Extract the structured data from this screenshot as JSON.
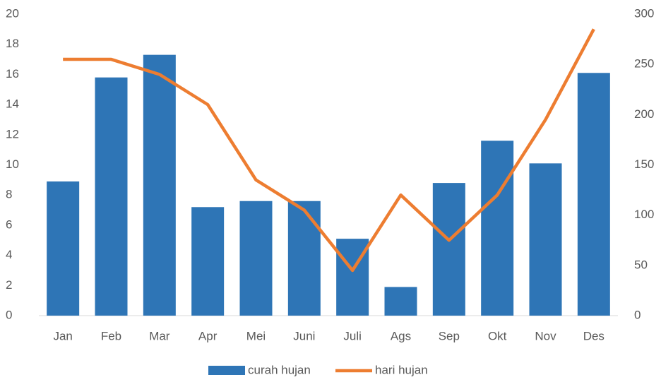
{
  "chart_data": {
    "type": "bar_line",
    "categories": [
      "Jan",
      "Feb",
      "Mar",
      "Apr",
      "Mei",
      "Juni",
      "Juli",
      "Ags",
      "Sep",
      "Okt",
      "Nov",
      "Des"
    ],
    "series": [
      {
        "name": "curah hujan",
        "type": "bar",
        "color": "#2e75b6",
        "values": [
          8.9,
          15.8,
          17.3,
          7.2,
          7.6,
          7.6,
          5.1,
          1.9,
          8.8,
          11.6,
          10.1,
          16.1
        ]
      },
      {
        "name": "hari hujan",
        "type": "line",
        "axis": "y2",
        "color": "#ed7d31",
        "values": [
          255,
          255,
          240,
          210,
          135,
          105,
          45,
          120,
          75,
          120,
          195,
          285
        ]
      }
    ],
    "ylim": [
      0,
      20
    ],
    "yticks": [
      0,
      2,
      4,
      6,
      8,
      10,
      12,
      14,
      16,
      18,
      20
    ],
    "y2lim": [
      0,
      300
    ],
    "y2ticks": [
      0,
      50,
      100,
      150,
      200,
      250,
      300
    ],
    "grid": false,
    "legend": "bottom"
  }
}
